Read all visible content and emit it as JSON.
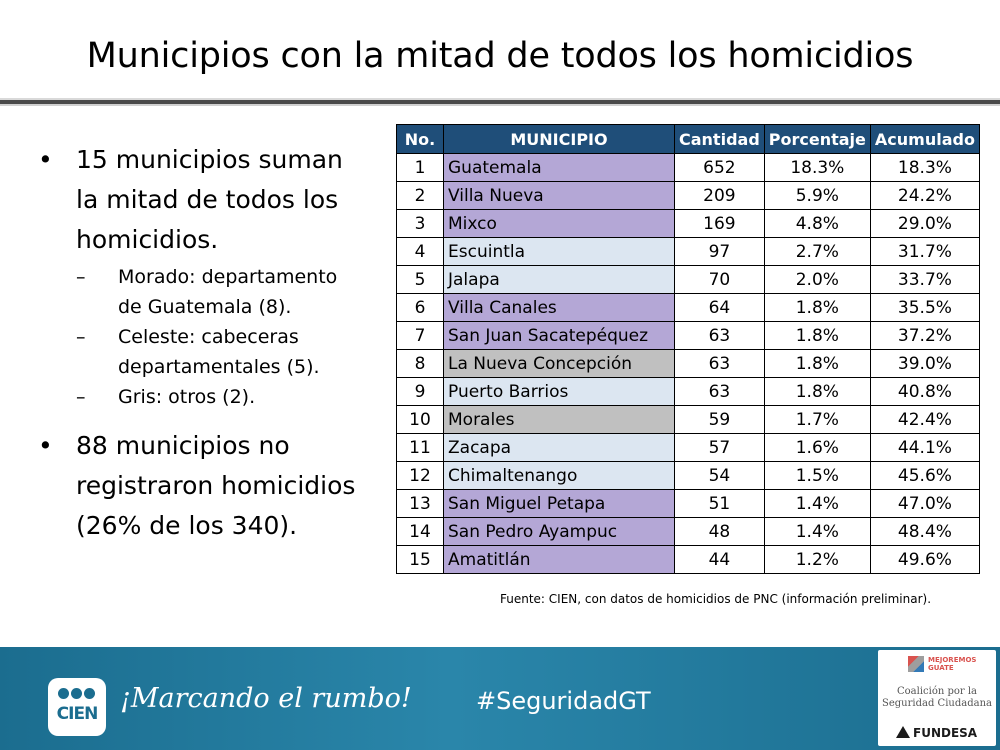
{
  "title": "Municipios con la mitad de todos los homicidios",
  "bullets": [
    {
      "text_lines": [
        "15 municipios suman",
        "la mitad de todos los",
        "homicidios."
      ],
      "subs": [
        {
          "lines": [
            "Morado: departamento",
            "de Guatemala (8)."
          ]
        },
        {
          "lines": [
            "Celeste: cabeceras",
            "departamentales (5)."
          ]
        },
        {
          "lines": [
            "Gris: otros (2)."
          ]
        }
      ]
    },
    {
      "text_lines": [
        "88 municipios no",
        "registraron homicidios",
        "(26% de los 340)."
      ],
      "subs": []
    }
  ],
  "bullet_glyph": "•",
  "dash_glyph": "–",
  "table": {
    "headers": [
      "No.",
      "MUNICIPIO",
      "Cantidad",
      "Porcentaje",
      "Acumulado"
    ],
    "rows": [
      {
        "no": "1",
        "municipio": "Guatemala",
        "cantidad": "652",
        "porcentaje": "18.3%",
        "acumulado": "18.3%",
        "group": "m"
      },
      {
        "no": "2",
        "municipio": "Villa Nueva",
        "cantidad": "209",
        "porcentaje": "5.9%",
        "acumulado": "24.2%",
        "group": "m"
      },
      {
        "no": "3",
        "municipio": "Mixco",
        "cantidad": "169",
        "porcentaje": "4.8%",
        "acumulado": "29.0%",
        "group": "m"
      },
      {
        "no": "4",
        "municipio": "Escuintla",
        "cantidad": "97",
        "porcentaje": "2.7%",
        "acumulado": "31.7%",
        "group": "c"
      },
      {
        "no": "5",
        "municipio": "Jalapa",
        "cantidad": "70",
        "porcentaje": "2.0%",
        "acumulado": "33.7%",
        "group": "c"
      },
      {
        "no": "6",
        "municipio": "Villa Canales",
        "cantidad": "64",
        "porcentaje": "1.8%",
        "acumulado": "35.5%",
        "group": "m"
      },
      {
        "no": "7",
        "municipio": "San Juan Sacatepéquez",
        "cantidad": "63",
        "porcentaje": "1.8%",
        "acumulado": "37.2%",
        "group": "m"
      },
      {
        "no": "8",
        "municipio": "La Nueva Concepción",
        "cantidad": "63",
        "porcentaje": "1.8%",
        "acumulado": "39.0%",
        "group": "g"
      },
      {
        "no": "9",
        "municipio": "Puerto Barrios",
        "cantidad": "63",
        "porcentaje": "1.8%",
        "acumulado": "40.8%",
        "group": "c"
      },
      {
        "no": "10",
        "municipio": "Morales",
        "cantidad": "59",
        "porcentaje": "1.7%",
        "acumulado": "42.4%",
        "group": "g"
      },
      {
        "no": "11",
        "municipio": "Zacapa",
        "cantidad": "57",
        "porcentaje": "1.6%",
        "acumulado": "44.1%",
        "group": "c"
      },
      {
        "no": "12",
        "municipio": "Chimaltenango",
        "cantidad": "54",
        "porcentaje": "1.5%",
        "acumulado": "45.6%",
        "group": "c"
      },
      {
        "no": "13",
        "municipio": "San Miguel Petapa",
        "cantidad": "51",
        "porcentaje": "1.4%",
        "acumulado": "47.0%",
        "group": "m"
      },
      {
        "no": "14",
        "municipio": "San Pedro Ayampuc",
        "cantidad": "48",
        "porcentaje": "1.4%",
        "acumulado": "48.4%",
        "group": "m"
      },
      {
        "no": "15",
        "municipio": "Amatitlán",
        "cantidad": "44",
        "porcentaje": "1.2%",
        "acumulado": "49.6%",
        "group": "m"
      }
    ]
  },
  "colors": {
    "morado": "#b4a7d6",
    "celeste": "#dce6f1",
    "gris": "#c0c0c0",
    "header": "#1f4e79",
    "footer": "#1b6d8f"
  },
  "source": "Fuente: CIEN, con datos de homicidios de PNC (información preliminar).",
  "footer": {
    "logo_text": "CIEN",
    "slogan": "¡Marcando el rumbo!",
    "hashtag": "#SeguridadGT",
    "coalition_logo_text": [
      "MEJOREMOS",
      "GUATE"
    ],
    "coalition_lines": [
      "Coalición por la",
      "Seguridad Ciudadana"
    ],
    "fundesa": "FUNDESA"
  }
}
